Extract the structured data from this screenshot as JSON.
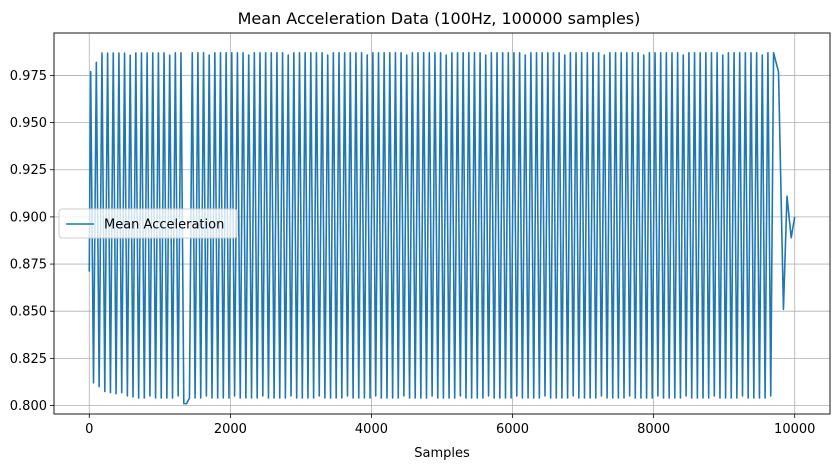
{
  "chart_data": {
    "type": "line",
    "title": "Mean Acceleration Data (100Hz, 100000 samples)",
    "xlabel": "Samples",
    "ylabel": "",
    "xlim": [
      -500,
      10500
    ],
    "ylim": [
      0.7955,
      0.9975
    ],
    "xticks": [
      0,
      2000,
      4000,
      6000,
      8000,
      10000
    ],
    "yticks": [
      0.8,
      0.825,
      0.85,
      0.875,
      0.9,
      0.925,
      0.95,
      0.975
    ],
    "xtick_labels": [
      "0",
      "2000",
      "4000",
      "6000",
      "8000",
      "10000"
    ],
    "ytick_labels": [
      "0.800",
      "0.825",
      "0.850",
      "0.875",
      "0.900",
      "0.925",
      "0.950",
      "0.975"
    ],
    "grid": true,
    "legend_position": "center-left",
    "series": [
      {
        "name": "Mean Acceleration",
        "color": "#1f77b4",
        "signal": {
          "form": "oscillation",
          "period_samples": 80,
          "start_value": 0.871,
          "end_value": 0.9,
          "sustained_max": 0.987,
          "sustained_min": 0.804,
          "x_start": 0,
          "x_end": 10000,
          "transient_peaks": [
            {
              "x": 20,
              "y": 0.977
            },
            {
              "x": 60,
              "y": 0.812
            },
            {
              "x": 100,
              "y": 0.982
            },
            {
              "x": 140,
              "y": 0.81
            },
            {
              "x": 1360,
              "y": 0.801
            },
            {
              "x": 9770,
              "y": 0.977
            },
            {
              "x": 9840,
              "y": 0.851
            },
            {
              "x": 9890,
              "y": 0.911
            },
            {
              "x": 9950,
              "y": 0.889
            }
          ]
        }
      }
    ]
  }
}
